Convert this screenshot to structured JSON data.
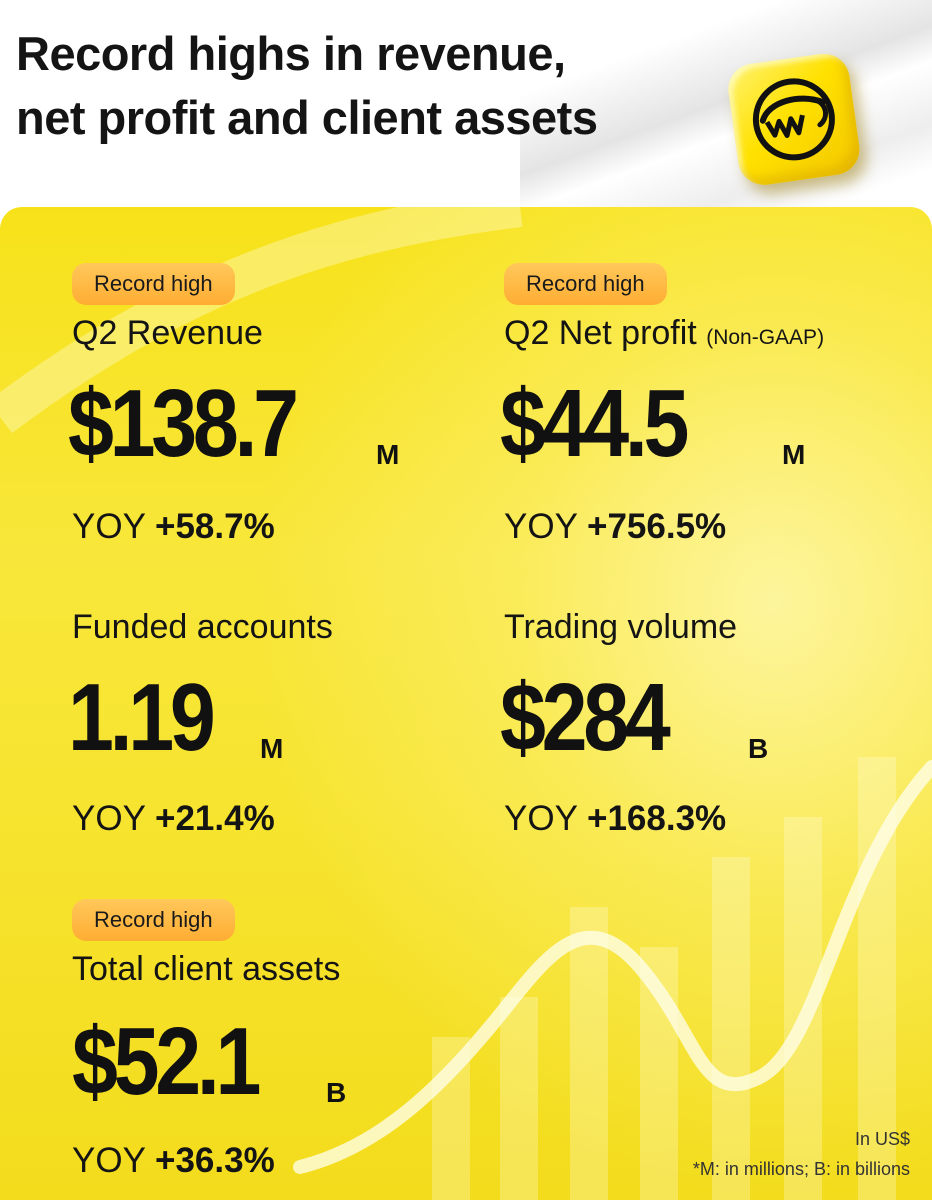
{
  "header": {
    "title_line1": "Record highs in revenue,",
    "title_line2": "net profit and client assets",
    "logo_icon": "smiling-bull-logo-icon"
  },
  "colors": {
    "panel_yellow": "#f7e21a",
    "badge_orange": "#ffb13d",
    "text_dark": "#111111"
  },
  "metrics": [
    {
      "badge": "Record high",
      "label": "Q2 Revenue",
      "qualifier": "",
      "value": "$138.7",
      "unit": "M",
      "yoy_prefix": "YOY",
      "yoy_value": "+58.7%"
    },
    {
      "badge": "Record high",
      "label": "Q2 Net profit",
      "qualifier": "(Non-GAAP)",
      "value": "$44.5",
      "unit": "M",
      "yoy_prefix": "YOY",
      "yoy_value": "+756.5%"
    },
    {
      "badge": "",
      "label": "Funded accounts",
      "qualifier": "",
      "value": "1.19",
      "unit": "M",
      "yoy_prefix": "YOY",
      "yoy_value": "+21.4%"
    },
    {
      "badge": "",
      "label": "Trading volume",
      "qualifier": "",
      "value": "$284",
      "unit": "B",
      "yoy_prefix": "YOY",
      "yoy_value": "+168.3%"
    },
    {
      "badge": "Record high",
      "label": "Total client assets",
      "qualifier": "",
      "value": "$52.1",
      "unit": "B",
      "yoy_prefix": "YOY",
      "yoy_value": "+36.3%"
    }
  ],
  "footnotes": {
    "currency": "In US$",
    "units": "*M: in millions; B: in billions"
  }
}
